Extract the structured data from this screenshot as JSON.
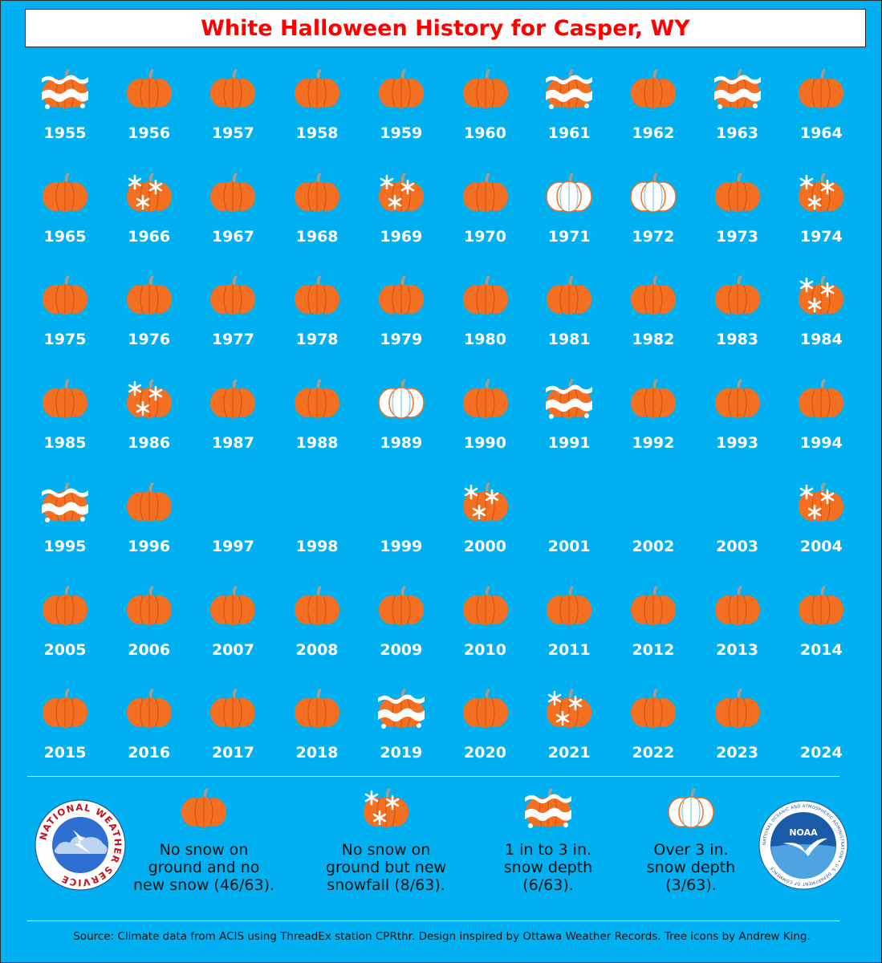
{
  "title": "White Halloween History for Casper, WY",
  "colors": {
    "background": "#00b0f0",
    "pumpkin": "#f36f21",
    "pumpkin_dark": "#d9540f",
    "stem": "#a89c8c",
    "snow": "#ffffff",
    "white_pumpkin_rib": "#7fcbe8",
    "title_text": "#ff0000"
  },
  "chart_data": {
    "type": "table",
    "title": "White Halloween History for Casper, WY",
    "categories": {
      "none": "No snow on ground and no new snow",
      "new_snow": "No snow on ground but new snowfall",
      "depth_1_3": "1 in to 3 in. snow depth",
      "depth_over_3": "Over 3 in. snow depth",
      "missing": "no icon shown"
    },
    "years": [
      {
        "year": "1955",
        "cat": "depth_1_3"
      },
      {
        "year": "1956",
        "cat": "none"
      },
      {
        "year": "1957",
        "cat": "none"
      },
      {
        "year": "1958",
        "cat": "none"
      },
      {
        "year": "1959",
        "cat": "none"
      },
      {
        "year": "1960",
        "cat": "none"
      },
      {
        "year": "1961",
        "cat": "depth_1_3"
      },
      {
        "year": "1962",
        "cat": "none"
      },
      {
        "year": "1963",
        "cat": "depth_1_3"
      },
      {
        "year": "1964",
        "cat": "none"
      },
      {
        "year": "1965",
        "cat": "none"
      },
      {
        "year": "1966",
        "cat": "new_snow"
      },
      {
        "year": "1967",
        "cat": "none"
      },
      {
        "year": "1968",
        "cat": "none"
      },
      {
        "year": "1969",
        "cat": "new_snow"
      },
      {
        "year": "1970",
        "cat": "none"
      },
      {
        "year": "1971",
        "cat": "depth_over_3"
      },
      {
        "year": "1972",
        "cat": "depth_over_3"
      },
      {
        "year": "1973",
        "cat": "none"
      },
      {
        "year": "1974",
        "cat": "new_snow"
      },
      {
        "year": "1975",
        "cat": "none"
      },
      {
        "year": "1976",
        "cat": "none"
      },
      {
        "year": "1977",
        "cat": "none"
      },
      {
        "year": "1978",
        "cat": "none"
      },
      {
        "year": "1979",
        "cat": "none"
      },
      {
        "year": "1980",
        "cat": "none"
      },
      {
        "year": "1981",
        "cat": "none"
      },
      {
        "year": "1982",
        "cat": "none"
      },
      {
        "year": "1983",
        "cat": "none"
      },
      {
        "year": "1984",
        "cat": "new_snow"
      },
      {
        "year": "1985",
        "cat": "none"
      },
      {
        "year": "1986",
        "cat": "new_snow"
      },
      {
        "year": "1987",
        "cat": "none"
      },
      {
        "year": "1988",
        "cat": "none"
      },
      {
        "year": "1989",
        "cat": "depth_over_3"
      },
      {
        "year": "1990",
        "cat": "none"
      },
      {
        "year": "1991",
        "cat": "depth_1_3"
      },
      {
        "year": "1992",
        "cat": "none"
      },
      {
        "year": "1993",
        "cat": "none"
      },
      {
        "year": "1994",
        "cat": "none"
      },
      {
        "year": "1995",
        "cat": "depth_1_3"
      },
      {
        "year": "1996",
        "cat": "none"
      },
      {
        "year": "1997",
        "cat": "missing"
      },
      {
        "year": "1998",
        "cat": "missing"
      },
      {
        "year": "1999",
        "cat": "missing"
      },
      {
        "year": "2000",
        "cat": "new_snow"
      },
      {
        "year": "2001",
        "cat": "missing"
      },
      {
        "year": "2002",
        "cat": "missing"
      },
      {
        "year": "2003",
        "cat": "missing"
      },
      {
        "year": "2004",
        "cat": "new_snow"
      },
      {
        "year": "2005",
        "cat": "none"
      },
      {
        "year": "2006",
        "cat": "none"
      },
      {
        "year": "2007",
        "cat": "none"
      },
      {
        "year": "2008",
        "cat": "none"
      },
      {
        "year": "2009",
        "cat": "none"
      },
      {
        "year": "2010",
        "cat": "none"
      },
      {
        "year": "2011",
        "cat": "none"
      },
      {
        "year": "2012",
        "cat": "none"
      },
      {
        "year": "2013",
        "cat": "none"
      },
      {
        "year": "2014",
        "cat": "none"
      },
      {
        "year": "2015",
        "cat": "none"
      },
      {
        "year": "2016",
        "cat": "none"
      },
      {
        "year": "2017",
        "cat": "none"
      },
      {
        "year": "2018",
        "cat": "none"
      },
      {
        "year": "2019",
        "cat": "depth_1_3"
      },
      {
        "year": "2020",
        "cat": "none"
      },
      {
        "year": "2021",
        "cat": "new_snow"
      },
      {
        "year": "2022",
        "cat": "none"
      },
      {
        "year": "2023",
        "cat": "none"
      },
      {
        "year": "2024",
        "cat": "missing"
      }
    ]
  },
  "legend": [
    {
      "cat": "none",
      "text": "No snow on\nground and no\nnew snow (46/63)."
    },
    {
      "cat": "new_snow",
      "text": "No snow on\nground but new\nsnowfall (8/63)."
    },
    {
      "cat": "depth_1_3",
      "text": "1 in to 3 in.\nsnow depth\n(6/63)."
    },
    {
      "cat": "depth_over_3",
      "text": "Over 3 in.\nsnow depth\n(3/63)."
    }
  ],
  "logos": {
    "nws_text": "NATIONAL WEATHER SERVICE",
    "noaa_text": "NOAA",
    "noaa_ring_text": "NATIONAL OCEANIC AND ATMOSPHERIC ADMINISTRATION • U.S. DEPARTMENT OF COMMERCE"
  },
  "source": "Source: Climate data from ACIS using ThreadEx station CPRthr. Design inspired by Ottawa Weather Records. Tree icons by Andrew King."
}
